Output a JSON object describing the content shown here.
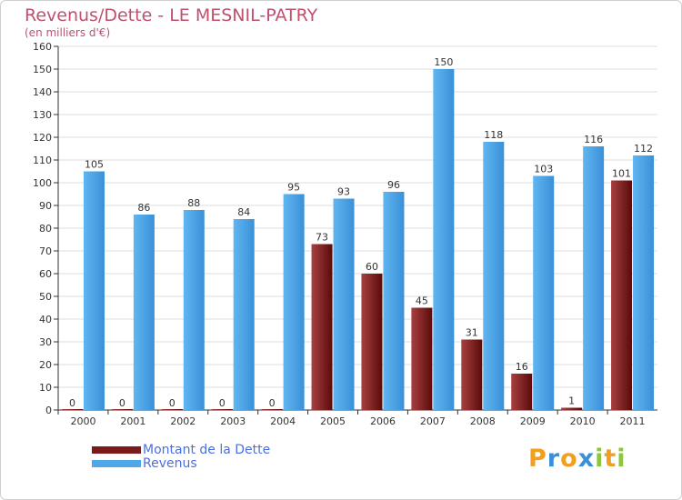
{
  "chart_data": {
    "type": "bar",
    "title": "Revenus/Dette - LE MESNIL-PATRY",
    "subtitle": "(en milliers d'€)",
    "categories": [
      "2000",
      "2001",
      "2002",
      "2003",
      "2004",
      "2005",
      "2006",
      "2007",
      "2008",
      "2009",
      "2010",
      "2011"
    ],
    "series": [
      {
        "name": "Montant de la Dette",
        "color": "#7a1a1a",
        "values": [
          0,
          0,
          0,
          0,
          0,
          73,
          60,
          45,
          31,
          16,
          1,
          101
        ]
      },
      {
        "name": "Revenus",
        "color": "#4ea7e8",
        "values": [
          105,
          86,
          88,
          84,
          95,
          93,
          96,
          150,
          118,
          103,
          116,
          112
        ]
      }
    ],
    "ylim": [
      0,
      160
    ],
    "yticks": [
      0,
      10,
      20,
      30,
      40,
      50,
      60,
      70,
      80,
      90,
      100,
      110,
      120,
      130,
      140,
      150,
      160
    ],
    "grid": true,
    "legend": "bottom-left"
  },
  "brand": {
    "letters": [
      "P",
      "r",
      "o",
      "x",
      "i",
      "t",
      "i"
    ],
    "colors": [
      "#f0a020",
      "#3a8fd8",
      "#f0a020",
      "#3a8fd8",
      "#8cc63f",
      "#f0a020",
      "#8cc63f"
    ]
  }
}
